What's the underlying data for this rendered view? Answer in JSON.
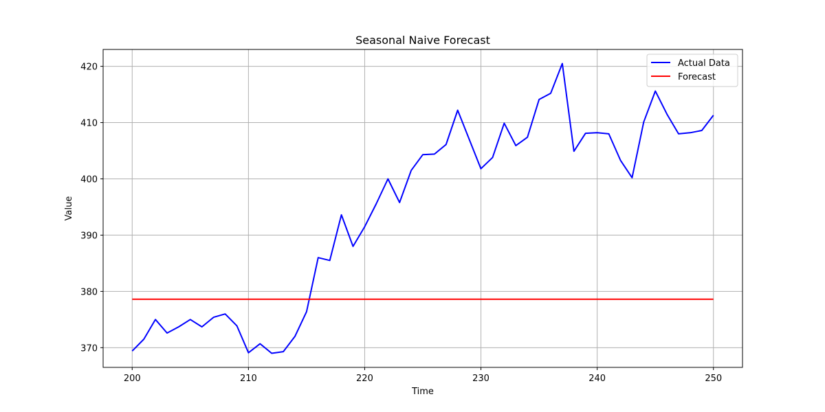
{
  "chart_data": {
    "type": "line",
    "title": "Seasonal Naive Forecast",
    "xlabel": "Time",
    "ylabel": "Value",
    "xlim": [
      197.5,
      252.5
    ],
    "ylim": [
      366.5,
      423.0
    ],
    "xticks": [
      200,
      210,
      220,
      230,
      240,
      250
    ],
    "yticks": [
      370,
      380,
      390,
      400,
      410,
      420
    ],
    "grid": true,
    "legend_position": "top-right",
    "series": [
      {
        "name": "Actual Data",
        "color": "#0000ff",
        "x": [
          200,
          201,
          202,
          203,
          204,
          205,
          206,
          207,
          208,
          209,
          210,
          211,
          212,
          213,
          214,
          215,
          216,
          217,
          218,
          219,
          220,
          221,
          222,
          223,
          224,
          225,
          226,
          227,
          228,
          229,
          230,
          231,
          232,
          233,
          234,
          235,
          236,
          237,
          238,
          239,
          240,
          241,
          242,
          243,
          244,
          245,
          246,
          247,
          248,
          249,
          250
        ],
        "values": [
          369.4,
          371.5,
          375.0,
          372.6,
          373.7,
          375.0,
          373.7,
          375.4,
          376.0,
          373.9,
          369.1,
          370.7,
          369.0,
          369.3,
          372.0,
          376.4,
          386.0,
          385.5,
          393.6,
          388.0,
          391.5,
          395.6,
          400.0,
          395.8,
          401.5,
          404.3,
          404.4,
          406.1,
          412.2,
          407.0,
          401.8,
          403.8,
          409.9,
          405.9,
          407.4,
          414.1,
          415.2,
          420.5,
          404.9,
          408.1,
          408.2,
          408.0,
          403.3,
          400.2,
          410.1,
          415.6,
          411.5,
          408.0,
          408.2,
          408.6,
          411.3
        ]
      },
      {
        "name": "Forecast",
        "color": "#ff0000",
        "x": [
          200,
          201,
          202,
          203,
          204,
          205,
          206,
          207,
          208,
          209,
          210,
          211,
          212,
          213,
          214,
          215,
          216,
          217,
          218,
          219,
          220,
          221,
          222,
          223,
          224,
          225,
          226,
          227,
          228,
          229,
          230,
          231,
          232,
          233,
          234,
          235,
          236,
          237,
          238,
          239,
          240,
          241,
          242,
          243,
          244,
          245,
          246,
          247,
          248,
          249,
          250
        ],
        "values": [
          378.6,
          378.6,
          378.6,
          378.6,
          378.6,
          378.6,
          378.6,
          378.6,
          378.6,
          378.6,
          378.6,
          378.6,
          378.6,
          378.6,
          378.6,
          378.6,
          378.6,
          378.6,
          378.6,
          378.6,
          378.6,
          378.6,
          378.6,
          378.6,
          378.6,
          378.6,
          378.6,
          378.6,
          378.6,
          378.6,
          378.6,
          378.6,
          378.6,
          378.6,
          378.6,
          378.6,
          378.6,
          378.6,
          378.6,
          378.6,
          378.6,
          378.6,
          378.6,
          378.6,
          378.6,
          378.6,
          378.6,
          378.6,
          378.6,
          378.6,
          378.6
        ]
      }
    ]
  }
}
